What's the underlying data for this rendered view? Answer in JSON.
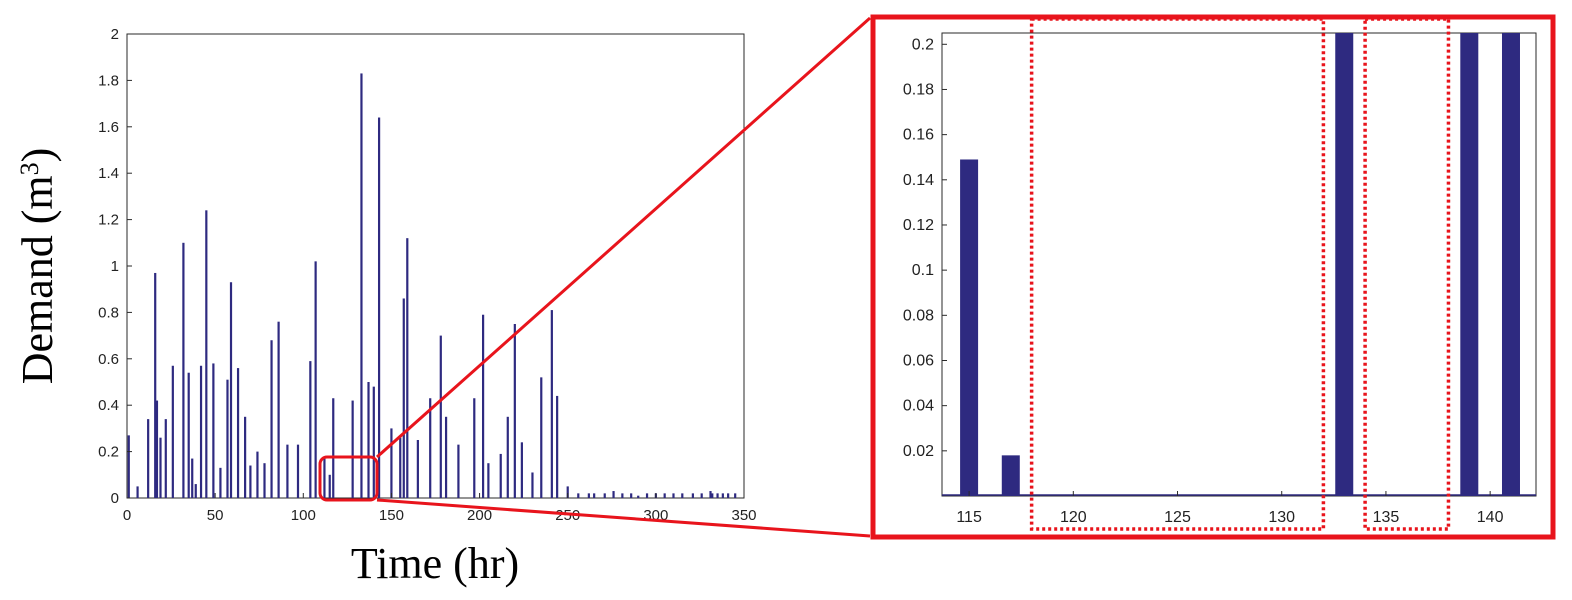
{
  "chart_data": [
    {
      "type": "bar",
      "xlabel": "Time (hr)",
      "ylabel_main": "Demand (m",
      "ylabel_sup": "3",
      "ylabel_close": ")",
      "xlim": [
        0,
        350
      ],
      "ylim": [
        0,
        2
      ],
      "xticks": [
        0,
        50,
        100,
        150,
        200,
        250,
        300,
        350
      ],
      "yticks": [
        0,
        0.2,
        0.4,
        0.6,
        0.8,
        1,
        1.2,
        1.4,
        1.6,
        1.8,
        2
      ],
      "grid": false,
      "bar_color": "#2e2a80",
      "series": [
        {
          "x": [
            1,
            6,
            12,
            16,
            17,
            19,
            22,
            26,
            32,
            35,
            37,
            39,
            42,
            45,
            49,
            53,
            57,
            59,
            63,
            67,
            70,
            74,
            78,
            82,
            86,
            91,
            97,
            104,
            107,
            112,
            115,
            117,
            128,
            133,
            137,
            140,
            143,
            150,
            155,
            157,
            159,
            165,
            172,
            178,
            181,
            188,
            197,
            202,
            205,
            212,
            216,
            220,
            224,
            230,
            235,
            241,
            244,
            250,
            256,
            262,
            265,
            271,
            276,
            281,
            286,
            290,
            295,
            300,
            305,
            310,
            315,
            321,
            326,
            331,
            332,
            335,
            338,
            341,
            345
          ],
          "values": [
            0.27,
            0.05,
            0.34,
            0.97,
            0.42,
            0.26,
            0.34,
            0.57,
            1.1,
            0.54,
            0.17,
            0.06,
            0.57,
            1.24,
            0.58,
            0.13,
            0.51,
            0.93,
            0.56,
            0.35,
            0.14,
            0.2,
            0.15,
            0.68,
            0.76,
            0.23,
            0.23,
            0.59,
            1.02,
            0.17,
            0.1,
            0.43,
            0.42,
            1.83,
            0.5,
            0.48,
            1.64,
            0.3,
            0.26,
            0.86,
            1.12,
            0.25,
            0.43,
            0.7,
            0.35,
            0.23,
            0.43,
            0.79,
            0.15,
            0.19,
            0.35,
            0.75,
            0.24,
            0.11,
            0.52,
            0.81,
            0.44,
            0.05,
            0.02,
            0.02,
            0.02,
            0.02,
            0.03,
            0.02,
            0.02,
            0.01,
            0.02,
            0.02,
            0.02,
            0.02,
            0.02,
            0.02,
            0.02,
            0.03,
            0.02,
            0.02,
            0.02,
            0.02,
            0.02
          ]
        }
      ],
      "highlight_box": {
        "x_range": [
          111,
          145
        ],
        "y_range": [
          0,
          0.205
        ]
      }
    },
    {
      "type": "bar",
      "xlim": [
        113.7,
        142.2
      ],
      "ylim": [
        0,
        0.205
      ],
      "xticks": [
        115,
        120,
        125,
        130,
        135,
        140
      ],
      "yticks": [
        0.02,
        0.04,
        0.06,
        0.08,
        0.1,
        0.12,
        0.14,
        0.16,
        0.18,
        0.2
      ],
      "grid": false,
      "bar_color": "#2e2a80",
      "series": [
        {
          "x": [
            115,
            117,
            133,
            139,
            141
          ],
          "values": [
            0.149,
            0.018,
            0.205,
            0.205,
            0.205
          ]
        }
      ],
      "dotted_boxes_x": [
        [
          118,
          132
        ],
        [
          134,
          138
        ]
      ]
    }
  ],
  "colors": {
    "highlight": "#e8141c",
    "bar": "#2e2a80"
  }
}
